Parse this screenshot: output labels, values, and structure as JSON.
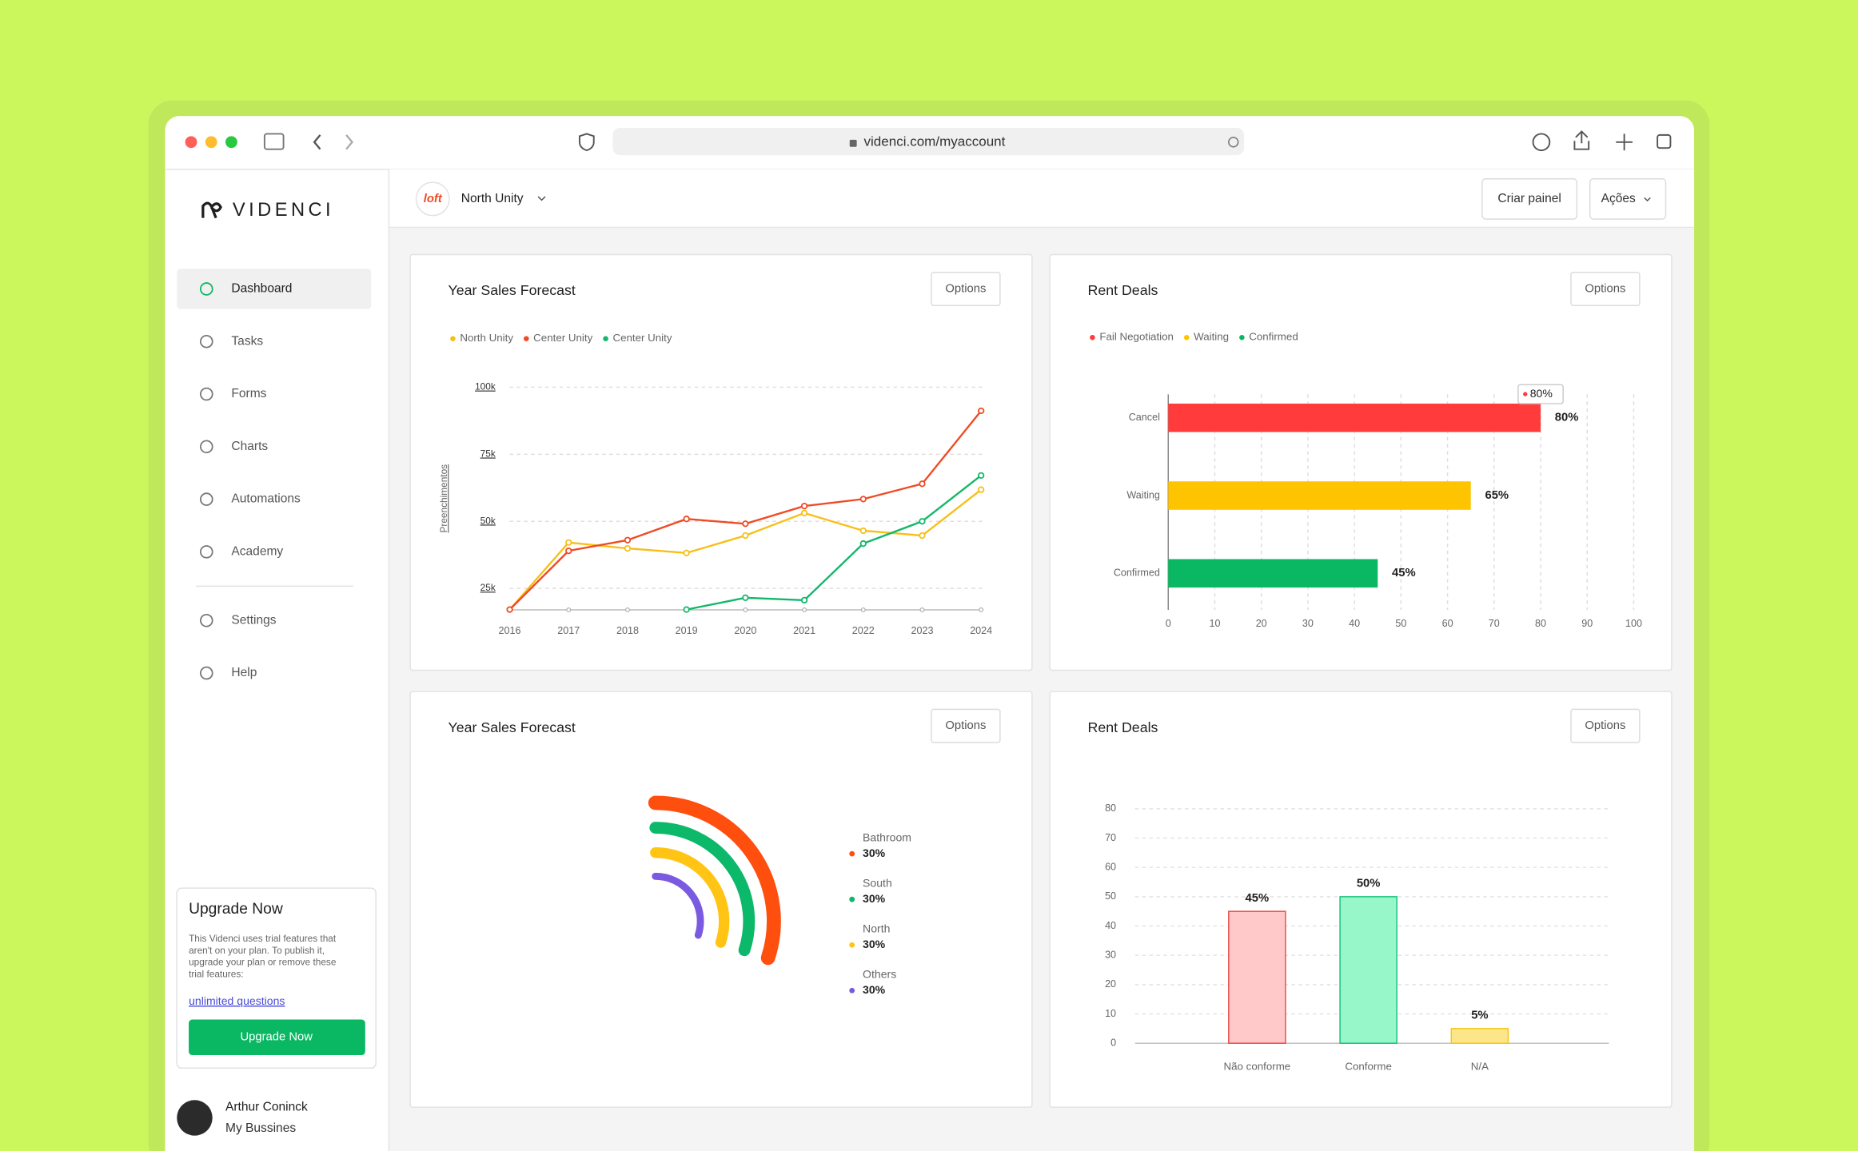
{
  "browser": {
    "url": "videnci.com/myaccount"
  },
  "sidebar": {
    "brand": "VIDENCI",
    "nav": [
      "Dashboard",
      "Tasks",
      "Forms",
      "Charts",
      "Automations",
      "Academy"
    ],
    "nav_bottom": [
      "Settings",
      "Help"
    ],
    "upgrade": {
      "title": "Upgrade Now",
      "body_lines": [
        "This Videnci uses trial features that",
        "aren't on your plan. To publish it,",
        "upgrade your plan or remove these",
        "trial features:"
      ],
      "link": "unlimited questions",
      "button": "Upgrade Now"
    },
    "user": {
      "name": "Arthur Coninck",
      "company": "My Bussines"
    }
  },
  "header": {
    "logo": "loft",
    "workspace": "North Unity",
    "buttons": [
      "Criar painel",
      "Ações"
    ]
  },
  "chart_data": [
    {
      "type": "line",
      "title": "Year Sales Forecast",
      "button": "Options",
      "y_label": "Preenchimentos",
      "categories": [
        "2016",
        "2017",
        "2018",
        "2019",
        "2020",
        "2021",
        "2022",
        "2023",
        "2024"
      ],
      "ylim": [
        17000,
        100000
      ],
      "yticks": [
        {
          "value": 25000,
          "label": "25k"
        },
        {
          "value": 50000,
          "label": "50k"
        },
        {
          "value": 75000,
          "label": "75k"
        },
        {
          "value": 100000,
          "label": "100k"
        }
      ],
      "grid": true,
      "series": [
        {
          "name": "North Unity",
          "color": "#f7bf16",
          "values": [
            17100,
            42100,
            39900,
            38200,
            44700,
            53100,
            46500,
            44700,
            61800
          ]
        },
        {
          "name": "Center Unity",
          "color": "#f04a23",
          "values": [
            17100,
            39000,
            43000,
            50900,
            49100,
            55700,
            58300,
            64000,
            91200
          ]
        },
        {
          "name": "Center Unity",
          "color": "#12b76a",
          "values": [
            null,
            null,
            null,
            17100,
            21500,
            20600,
            41700,
            50000,
            67100
          ]
        }
      ]
    },
    {
      "type": "bar",
      "horizontal": true,
      "title": "Rent Deals",
      "button": "Options",
      "legend": [
        {
          "name": "Fail Negotiation",
          "color": "#ff3b3b"
        },
        {
          "name": "Waiting",
          "color": "#ffc400"
        },
        {
          "name": "Confirmed",
          "color": "#0ab863"
        }
      ],
      "categories": [
        "Cancel",
        "Waiting",
        "Confirmed"
      ],
      "values": [
        80,
        65,
        45
      ],
      "value_labels": [
        "80%",
        "65%",
        "45%"
      ],
      "colors": [
        "#ff3b3b",
        "#ffc400",
        "#0ab863"
      ],
      "tooltip": "80%",
      "xlim": [
        0,
        100
      ],
      "xticks": [
        0,
        10,
        20,
        30,
        40,
        50,
        60,
        70,
        80,
        90,
        100
      ],
      "grid": true
    },
    {
      "type": "radial_bar",
      "title": "Year Sales Forecast",
      "button": "Options",
      "categories": [
        "Bathroom",
        "South",
        "North",
        "Others"
      ],
      "values": [
        30,
        30,
        30,
        30
      ],
      "value_labels": [
        "30%",
        "30%",
        "30%",
        "30%"
      ],
      "colors": [
        "#ff4f0f",
        "#0cb86a",
        "#ffc414",
        "#7a5ae0"
      ]
    },
    {
      "type": "bar",
      "horizontal": false,
      "title": "Rent Deals",
      "button": "Options",
      "categories": [
        "Não conforme",
        "Conforme",
        "N/A"
      ],
      "values": [
        45,
        50,
        5
      ],
      "value_labels": [
        "45%",
        "50%",
        "5%"
      ],
      "colors": [
        "#ffc9c9",
        "#98f7c9",
        "#fde68a"
      ],
      "edge_colors": [
        "#f04a4a",
        "#19c37d",
        "#f5c518"
      ],
      "ylim": [
        0,
        80
      ],
      "yticks": [
        0,
        10,
        20,
        30,
        40,
        50,
        60,
        70,
        80
      ],
      "grid": true
    }
  ]
}
